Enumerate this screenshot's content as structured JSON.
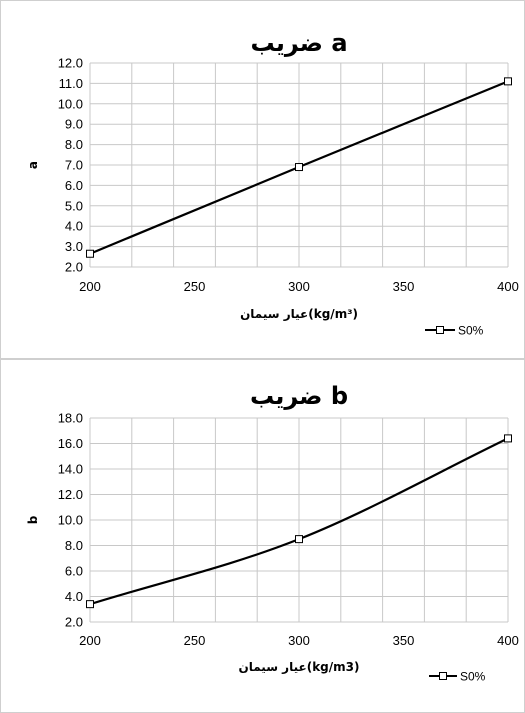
{
  "chart_data": [
    {
      "type": "line",
      "title": "ضریب a",
      "xlabel": "عیار سیمان(kg/m³)",
      "ylabel": "a",
      "x": [
        200,
        300,
        400
      ],
      "series": [
        {
          "name": "S0%",
          "values": [
            2.65,
            6.9,
            11.1
          ]
        }
      ],
      "xlim": [
        200,
        400
      ],
      "ylim": [
        2.0,
        12.0
      ],
      "xticks": [
        "200",
        "250",
        "300",
        "350",
        "400"
      ],
      "yticks": [
        "2.0",
        "3.0",
        "4.0",
        "5.0",
        "6.0",
        "7.0",
        "8.0",
        "9.0",
        "10.0",
        "11.0",
        "12.0"
      ],
      "grid": true,
      "legend": "bottom-right",
      "colors": {
        "line": "#000000",
        "grid": "#c8c8c8"
      }
    },
    {
      "type": "line",
      "title": "ضریب b",
      "xlabel": "عیار سیمان(kg/m3)",
      "ylabel": "b",
      "x": [
        200,
        300,
        400
      ],
      "series": [
        {
          "name": "S0%",
          "values": [
            3.4,
            8.5,
            16.4
          ]
        }
      ],
      "xlim": [
        200,
        400
      ],
      "ylim": [
        2.0,
        18.0
      ],
      "xticks": [
        "200",
        "250",
        "300",
        "350",
        "400"
      ],
      "yticks": [
        "2.0",
        "4.0",
        "6.0",
        "8.0",
        "10.0",
        "12.0",
        "14.0",
        "16.0",
        "18.0"
      ],
      "grid": true,
      "legend": "bottom-right",
      "colors": {
        "line": "#000000",
        "grid": "#c8c8c8"
      }
    }
  ]
}
